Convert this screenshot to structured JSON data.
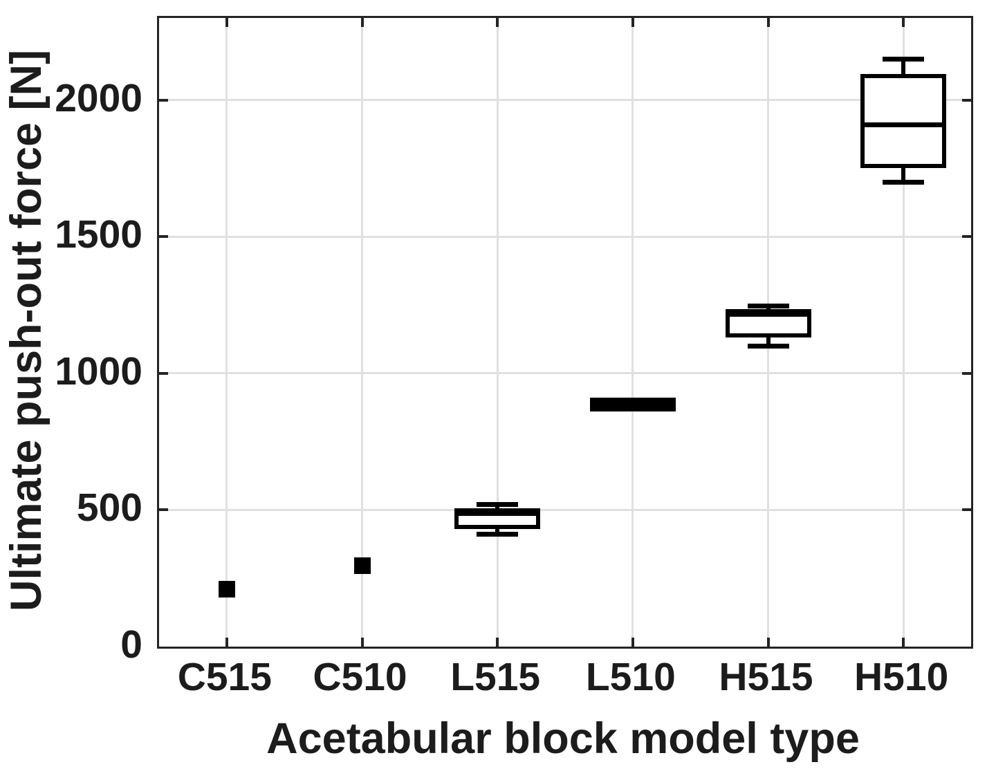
{
  "figure": {
    "background_color": "#ffffff",
    "axis_color": "#242424",
    "gridline_color": "#e0e0e0",
    "data_color": "#000000",
    "text_color": "#1c1c1c"
  },
  "chart_data": {
    "type": "box",
    "title": "",
    "xlabel": "Acetabular block model type",
    "ylabel": "Ultimate push-out force [N]",
    "categories": [
      "C515",
      "C510",
      "L515",
      "L510",
      "H515",
      "H510"
    ],
    "ylim": [
      0,
      2300
    ],
    "yticks": [
      0,
      500,
      1000,
      1500,
      2000
    ],
    "grid": "both",
    "legend": "none",
    "series": [
      {
        "label": "C515",
        "style": "square",
        "whisker_low": 210,
        "q1": 210,
        "median": 210,
        "q3": 210,
        "whisker_high": 210
      },
      {
        "label": "C510",
        "style": "square",
        "whisker_low": 295,
        "q1": 295,
        "median": 295,
        "q3": 295,
        "whisker_high": 295
      },
      {
        "label": "L515",
        "style": "box",
        "whisker_low": 410,
        "q1": 430,
        "median": 487,
        "q3": 505,
        "whisker_high": 520
      },
      {
        "label": "L510",
        "style": "filled-bar",
        "whisker_low": 860,
        "q1": 860,
        "median": 885,
        "q3": 910,
        "whisker_high": 910
      },
      {
        "label": "H515",
        "style": "box",
        "whisker_low": 1100,
        "q1": 1130,
        "median": 1215,
        "q3": 1235,
        "whisker_high": 1245
      },
      {
        "label": "H510",
        "style": "box",
        "whisker_low": 1700,
        "q1": 1750,
        "median": 1910,
        "q3": 2095,
        "whisker_high": 2150
      }
    ]
  }
}
